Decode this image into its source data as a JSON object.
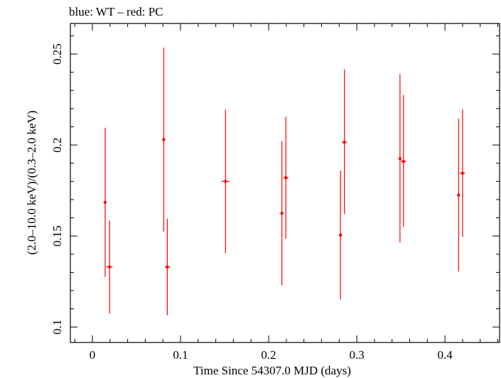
{
  "chart_data": {
    "type": "scatter",
    "title": "blue: WT – red: PC",
    "xlabel": "Time Since 54307.0 MJD (days)",
    "ylabel": "(2.0–10.0 keV)/(0.3–2.0 keV)",
    "xlim": [
      -0.025,
      0.462
    ],
    "ylim": [
      0.0915,
      0.2668
    ],
    "x_ticks": [
      0,
      0.1,
      0.2,
      0.3,
      0.4
    ],
    "x_tick_labels": [
      "0",
      "0.1",
      "0.2",
      "0.3",
      "0.4"
    ],
    "y_ticks": [
      0.1,
      0.15,
      0.2,
      0.25
    ],
    "y_tick_labels": [
      "0.1",
      "0.15",
      "0.2",
      "0.25"
    ],
    "series": [
      {
        "name": "PC",
        "color": "#ff0000",
        "points": [
          {
            "x": 0.0145,
            "y": 0.1685,
            "xerr": 0.0015,
            "ylo": 0.1275,
            "yhi": 0.2095
          },
          {
            "x": 0.0195,
            "y": 0.133,
            "xerr": 0.0035,
            "ylo": 0.1075,
            "yhi": 0.1585
          },
          {
            "x": 0.081,
            "y": 0.203,
            "xerr": 0.0015,
            "ylo": 0.1525,
            "yhi": 0.2535
          },
          {
            "x": 0.085,
            "y": 0.133,
            "xerr": 0.003,
            "ylo": 0.1065,
            "yhi": 0.1595
          },
          {
            "x": 0.151,
            "y": 0.18,
            "xerr": 0.0045,
            "ylo": 0.1405,
            "yhi": 0.2195
          },
          {
            "x": 0.215,
            "y": 0.1625,
            "xerr": 0.0012,
            "ylo": 0.123,
            "yhi": 0.202
          },
          {
            "x": 0.2195,
            "y": 0.182,
            "xerr": 0.003,
            "ylo": 0.1485,
            "yhi": 0.2155
          },
          {
            "x": 0.2815,
            "y": 0.1505,
            "xerr": 0.0012,
            "ylo": 0.115,
            "yhi": 0.186
          },
          {
            "x": 0.286,
            "y": 0.2015,
            "xerr": 0.003,
            "ylo": 0.162,
            "yhi": 0.2415
          },
          {
            "x": 0.349,
            "y": 0.1925,
            "xerr": 0.0015,
            "ylo": 0.1465,
            "yhi": 0.239
          },
          {
            "x": 0.353,
            "y": 0.191,
            "xerr": 0.003,
            "ylo": 0.155,
            "yhi": 0.2275
          },
          {
            "x": 0.4155,
            "y": 0.1725,
            "xerr": 0.0012,
            "ylo": 0.1305,
            "yhi": 0.2145
          },
          {
            "x": 0.42,
            "y": 0.1845,
            "xerr": 0.003,
            "ylo": 0.1495,
            "yhi": 0.2195
          }
        ]
      }
    ]
  }
}
